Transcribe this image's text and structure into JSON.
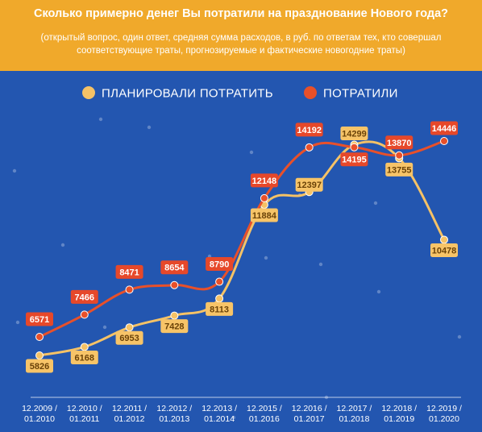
{
  "header": {
    "title": "Сколько примерно денег Вы потратили на празднование Нового года?",
    "subtitle": "(открытый вопрос, один ответ, средняя сумма расходов, в руб. по ответам тех, кто совершал соответствующие траты, прогнозируемые и фактические новогодние траты)"
  },
  "colors": {
    "background": "#2356b0",
    "header": "#f0a92b",
    "planned": "#f5c266",
    "spent": "#e8502a",
    "planned_label_bg": "#f7c468",
    "planned_label_text": "#6a4208",
    "spent_label_bg": "#e6482a",
    "spent_label_text": "#ffffff"
  },
  "chart_data": {
    "type": "line",
    "title": "Сколько примерно денег Вы потратили на празднование Нового года?",
    "xlabel": "",
    "ylabel": "",
    "grid": false,
    "legend": "top",
    "categories": [
      "12.2009 / 01.2010",
      "12.2010 / 01.2011",
      "12.2011 / 01.2012",
      "12.2012 / 01.2013",
      "12.2013 / 01.2014",
      "12.2015 / 01.2016",
      "12.2016 / 01.2017",
      "12.2017 / 01.2018",
      "12.2018 / 01.2019",
      "12.2019 / 01.2020"
    ],
    "series": [
      {
        "name": "ПЛАНИРОВАЛИ ПОТРАТИТЬ",
        "values": [
          5826,
          6168,
          6953,
          7428,
          8113,
          11884,
          12397,
          14299,
          13755,
          10478
        ]
      },
      {
        "name": "ПОТРАТИЛИ",
        "values": [
          6571,
          7466,
          8471,
          8654,
          8790,
          12148,
          14192,
          14195,
          13870,
          14446
        ]
      }
    ]
  }
}
